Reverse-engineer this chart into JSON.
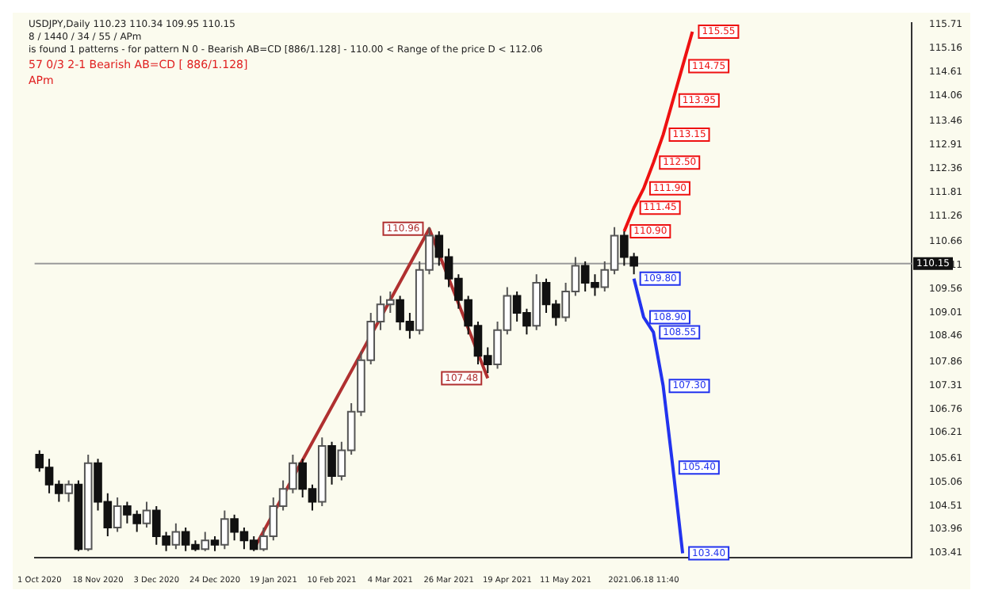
{
  "chart_data": {
    "type": "candlestick",
    "title": "USDJPY,Daily 110.23 110.34 109.95 110.15",
    "categories": [
      "1 Oct 2020",
      null,
      null,
      null,
      null,
      null,
      "18 Nov 2020",
      null,
      null,
      null,
      null,
      null,
      "3 Dec 2020",
      null,
      null,
      null,
      null,
      null,
      "24 Dec 2020",
      null,
      null,
      null,
      null,
      null,
      "19 Jan 2021",
      null,
      null,
      null,
      null,
      null,
      "10 Feb 2021",
      null,
      null,
      null,
      null,
      null,
      "4 Mar 2021",
      null,
      null,
      null,
      null,
      null,
      "26 Mar 2021",
      null,
      null,
      null,
      null,
      null,
      "19 Apr 2021",
      null,
      null,
      null,
      null,
      null,
      "11 May 2021",
      null,
      null,
      null,
      null,
      null,
      null,
      null,
      "2021.06.18 11:40",
      null,
      null,
      null,
      null,
      null,
      null,
      null,
      null,
      null,
      null,
      null,
      null,
      null,
      null,
      null,
      null,
      null,
      null,
      null,
      null,
      null,
      null,
      null,
      null,
      null,
      null,
      null
    ],
    "ohlc": [
      [
        105.7,
        105.8,
        105.3,
        105.4
      ],
      [
        105.4,
        105.6,
        104.8,
        105.0
      ],
      [
        105.0,
        105.1,
        104.6,
        104.8
      ],
      [
        104.8,
        105.1,
        104.6,
        105.0
      ],
      [
        105.0,
        105.1,
        103.45,
        103.5
      ],
      [
        103.5,
        105.7,
        103.45,
        105.5
      ],
      [
        105.5,
        105.6,
        104.4,
        104.6
      ],
      [
        104.6,
        104.8,
        103.8,
        104.0
      ],
      [
        104.0,
        104.7,
        103.9,
        104.5
      ],
      [
        104.5,
        104.6,
        104.1,
        104.3
      ],
      [
        104.3,
        104.4,
        103.9,
        104.1
      ],
      [
        104.1,
        104.6,
        104.0,
        104.4
      ],
      [
        104.4,
        104.5,
        103.6,
        103.8
      ],
      [
        103.8,
        103.9,
        103.45,
        103.6
      ],
      [
        103.6,
        104.1,
        103.5,
        103.9
      ],
      [
        103.9,
        104.0,
        103.45,
        103.6
      ],
      [
        103.6,
        103.7,
        103.45,
        103.5
      ],
      [
        103.5,
        103.9,
        103.45,
        103.7
      ],
      [
        103.7,
        103.8,
        103.45,
        103.6
      ],
      [
        103.6,
        104.4,
        103.5,
        104.2
      ],
      [
        104.2,
        104.3,
        103.7,
        103.9
      ],
      [
        103.9,
        104.0,
        103.5,
        103.7
      ],
      [
        103.7,
        103.8,
        103.45,
        103.5
      ],
      [
        103.5,
        104.0,
        103.45,
        103.8
      ],
      [
        103.8,
        104.7,
        103.7,
        104.5
      ],
      [
        104.5,
        105.1,
        104.4,
        104.9
      ],
      [
        104.9,
        105.7,
        104.8,
        105.5
      ],
      [
        105.5,
        105.6,
        104.7,
        104.9
      ],
      [
        104.9,
        105.0,
        104.4,
        104.6
      ],
      [
        104.6,
        106.1,
        104.5,
        105.9
      ],
      [
        105.9,
        106.0,
        105.0,
        105.2
      ],
      [
        105.2,
        106.0,
        105.1,
        105.8
      ],
      [
        105.8,
        106.9,
        105.7,
        106.7
      ],
      [
        106.7,
        108.1,
        106.6,
        107.9
      ],
      [
        107.9,
        109.0,
        107.8,
        108.8
      ],
      [
        108.8,
        109.4,
        108.6,
        109.2
      ],
      [
        109.2,
        109.5,
        109.0,
        109.3
      ],
      [
        109.3,
        109.4,
        108.6,
        108.8
      ],
      [
        108.8,
        109.0,
        108.4,
        108.6
      ],
      [
        108.6,
        110.2,
        108.5,
        110.0
      ],
      [
        110.0,
        111.0,
        109.9,
        110.8
      ],
      [
        110.8,
        110.9,
        110.1,
        110.3
      ],
      [
        110.3,
        110.5,
        109.6,
        109.8
      ],
      [
        109.8,
        109.9,
        109.1,
        109.3
      ],
      [
        109.3,
        109.4,
        108.5,
        108.7
      ],
      [
        108.7,
        108.8,
        107.8,
        108.0
      ],
      [
        108.0,
        108.2,
        107.6,
        107.8
      ],
      [
        107.8,
        108.8,
        107.7,
        108.6
      ],
      [
        108.6,
        109.6,
        108.5,
        109.4
      ],
      [
        109.4,
        109.5,
        108.8,
        109.0
      ],
      [
        109.0,
        109.1,
        108.5,
        108.7
      ],
      [
        108.7,
        109.9,
        108.6,
        109.7
      ],
      [
        109.7,
        109.8,
        109.0,
        109.2
      ],
      [
        109.2,
        109.3,
        108.7,
        108.9
      ],
      [
        108.9,
        109.7,
        108.8,
        109.5
      ],
      [
        109.5,
        110.3,
        109.4,
        110.1
      ],
      [
        110.1,
        110.2,
        109.5,
        109.7
      ],
      [
        109.7,
        109.9,
        109.4,
        109.6
      ],
      [
        109.6,
        110.2,
        109.5,
        110.0
      ],
      [
        110.0,
        111.0,
        109.9,
        110.8
      ],
      [
        110.8,
        110.9,
        110.1,
        110.3
      ],
      [
        110.3,
        110.4,
        109.9,
        110.1
      ],
      null,
      null,
      null,
      null,
      null,
      null,
      null,
      null,
      null,
      null,
      null,
      null,
      null,
      null,
      null,
      null,
      null,
      null,
      null,
      null,
      null,
      null,
      null,
      null,
      null,
      null,
      null,
      null
    ],
    "series": [
      {
        "type": "line",
        "color": "#b03030",
        "values": [
          null,
          null,
          null,
          null,
          null,
          null,
          null,
          null,
          null,
          null,
          null,
          null,
          null,
          null,
          null,
          null,
          null,
          null,
          null,
          null,
          null,
          null,
          103.5,
          null,
          null,
          null,
          null,
          null,
          null,
          null,
          null,
          null,
          null,
          null,
          null,
          null,
          null,
          null,
          null,
          null,
          110.96,
          null,
          null,
          null,
          null,
          null,
          107.48,
          null,
          null,
          null,
          null,
          null,
          null,
          null,
          null,
          null,
          null,
          null,
          null,
          null,
          null,
          null,
          null,
          null,
          null,
          null,
          null,
          null,
          null,
          null,
          null,
          null,
          null,
          null,
          null,
          null,
          null,
          null,
          null,
          null,
          null,
          null,
          null,
          null,
          null,
          null,
          null,
          null,
          null,
          null
        ],
        "value_labels": [
          null,
          null,
          null,
          null,
          null,
          null,
          null,
          null,
          null,
          null,
          null,
          null,
          null,
          null,
          null,
          null,
          null,
          null,
          null,
          null,
          null,
          null,
          null,
          null,
          null,
          null,
          null,
          null,
          null,
          null,
          null,
          null,
          null,
          null,
          null,
          null,
          null,
          null,
          null,
          null,
          "110.96",
          null,
          null,
          null,
          null,
          null,
          "107.48",
          null,
          null,
          null,
          null,
          null,
          null,
          null,
          null,
          null,
          null,
          null,
          null,
          null,
          null,
          null,
          null,
          null,
          null,
          null,
          null,
          null,
          null,
          null,
          null,
          null,
          null,
          null,
          null,
          null,
          null,
          null,
          null,
          null,
          null,
          null,
          null,
          null,
          null,
          null,
          null,
          null,
          null,
          null
        ]
      },
      {
        "type": "line",
        "color": "#ee1111",
        "values": [
          null,
          null,
          null,
          null,
          null,
          null,
          null,
          null,
          null,
          null,
          null,
          null,
          null,
          null,
          null,
          null,
          null,
          null,
          null,
          null,
          null,
          null,
          null,
          null,
          null,
          null,
          null,
          null,
          null,
          null,
          null,
          null,
          null,
          null,
          null,
          null,
          null,
          null,
          null,
          null,
          null,
          null,
          null,
          null,
          null,
          null,
          null,
          null,
          null,
          null,
          null,
          null,
          null,
          null,
          null,
          null,
          null,
          null,
          null,
          null,
          110.9,
          111.45,
          111.9,
          112.5,
          113.15,
          113.95,
          114.75,
          115.55,
          null,
          null,
          null,
          null,
          null,
          null,
          null,
          null,
          null,
          null,
          null,
          null,
          null,
          null,
          null,
          null,
          null,
          null,
          null,
          null,
          null,
          null
        ],
        "value_labels": [
          null,
          null,
          null,
          null,
          null,
          null,
          null,
          null,
          null,
          null,
          null,
          null,
          null,
          null,
          null,
          null,
          null,
          null,
          null,
          null,
          null,
          null,
          null,
          null,
          null,
          null,
          null,
          null,
          null,
          null,
          null,
          null,
          null,
          null,
          null,
          null,
          null,
          null,
          null,
          null,
          null,
          null,
          null,
          null,
          null,
          null,
          null,
          null,
          null,
          null,
          null,
          null,
          null,
          null,
          null,
          null,
          null,
          null,
          null,
          null,
          "110.90",
          "111.45",
          "111.90",
          "112.50",
          "113.15",
          "113.95",
          "114.75",
          "115.55",
          null,
          null,
          null,
          null,
          null,
          null,
          null,
          null,
          null,
          null,
          null,
          null,
          null,
          null,
          null,
          null,
          null,
          null,
          null,
          null,
          null,
          null
        ]
      },
      {
        "type": "line",
        "color": "#2233ee",
        "values": [
          null,
          null,
          null,
          null,
          null,
          null,
          null,
          null,
          null,
          null,
          null,
          null,
          null,
          null,
          null,
          null,
          null,
          null,
          null,
          null,
          null,
          null,
          null,
          null,
          null,
          null,
          null,
          null,
          null,
          null,
          null,
          null,
          null,
          null,
          null,
          null,
          null,
          null,
          null,
          null,
          null,
          null,
          null,
          null,
          null,
          null,
          null,
          null,
          null,
          null,
          null,
          null,
          null,
          null,
          null,
          null,
          null,
          null,
          null,
          null,
          null,
          109.8,
          108.9,
          108.55,
          107.3,
          105.4,
          103.4,
          null,
          null,
          null,
          null,
          null,
          null,
          null,
          null,
          null,
          null,
          null,
          null,
          null,
          null,
          null,
          null,
          null,
          null,
          null,
          null,
          null,
          null,
          null
        ],
        "value_labels": [
          null,
          null,
          null,
          null,
          null,
          null,
          null,
          null,
          null,
          null,
          null,
          null,
          null,
          null,
          null,
          null,
          null,
          null,
          null,
          null,
          null,
          null,
          null,
          null,
          null,
          null,
          null,
          null,
          null,
          null,
          null,
          null,
          null,
          null,
          null,
          null,
          null,
          null,
          null,
          null,
          null,
          null,
          null,
          null,
          null,
          null,
          null,
          null,
          null,
          null,
          null,
          null,
          null,
          null,
          null,
          null,
          null,
          null,
          null,
          null,
          null,
          "109.80",
          "108.90",
          "108.55",
          "107.30",
          "105.40",
          "103.40",
          null,
          null,
          null,
          null,
          null,
          null,
          null,
          null,
          null,
          null,
          null,
          null,
          null,
          null,
          null,
          null,
          null,
          null,
          null,
          null,
          null,
          null,
          null
        ]
      }
    ],
    "ylim": [
      103.3,
      115.75
    ],
    "yticks": [
      103.41,
      103.96,
      104.51,
      105.06,
      105.61,
      106.21,
      106.76,
      107.31,
      107.86,
      108.46,
      109.01,
      109.56,
      110.11,
      110.66,
      111.26,
      111.81,
      112.36,
      112.91,
      113.46,
      114.06,
      114.61,
      115.16,
      115.71
    ],
    "ref_lines": [
      {
        "axis": "y",
        "value": 110.15,
        "label": "110.15",
        "color": "#9a9a9a"
      }
    ],
    "annotations": [
      "8 / 1440 / 34 / 55 / APm",
      "is found 1 patterns - for pattern N 0 - Bearish AB=CD [886/1.128] - 110.00 < Range of the price D < 112.06",
      "57   0/3   2-1   Bearish AB=CD [ 886/1.128]",
      "APm"
    ],
    "grid": false,
    "legend": false
  }
}
